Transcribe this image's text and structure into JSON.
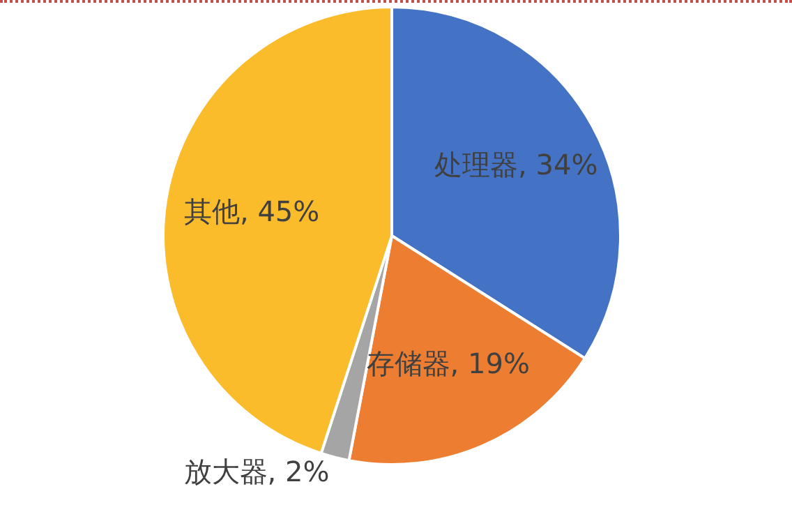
{
  "chart_data": {
    "type": "pie",
    "categories": [
      "处理器",
      "存储器",
      "放大器",
      "其他"
    ],
    "values": [
      34,
      19,
      2,
      45
    ],
    "colors": [
      "#4472c4",
      "#ed7d31",
      "#a5a5a5",
      "#fbbc2c"
    ],
    "value_labels": [
      "34%",
      "19%",
      "2%",
      "45%"
    ],
    "legend": false
  }
}
